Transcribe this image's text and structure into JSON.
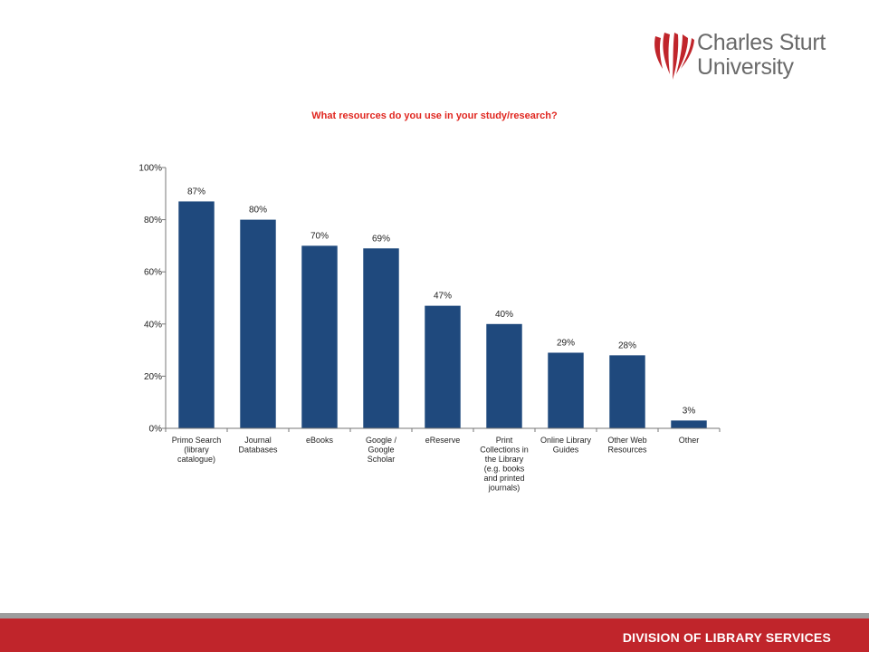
{
  "logo": {
    "line1": "Charles Sturt",
    "line2": "University"
  },
  "footer": {
    "text": "DIVISION OF LIBRARY SERVICES"
  },
  "colors": {
    "bar": "#1f497d",
    "title": "#e0261f",
    "footer_bar": "#c0252b",
    "logo_red": "#c0252b"
  },
  "chart_data": {
    "type": "bar",
    "title": "What resources do you use in your study/research?",
    "categories": [
      "Primo Search (library catalogue)",
      "Journal Databases",
      "eBooks",
      "Google / Google Scholar",
      "eReserve",
      "Print Collections in the Library (e.g. books and printed journals)",
      "Online Library Guides",
      "Other Web Resources",
      "Other"
    ],
    "category_lines": [
      [
        "Primo Search",
        "(library",
        "catalogue)"
      ],
      [
        "Journal",
        "Databases"
      ],
      [
        "eBooks"
      ],
      [
        "Google /",
        "Google",
        "Scholar"
      ],
      [
        "eReserve"
      ],
      [
        "Print",
        "Collections in",
        "the Library",
        "(e.g. books",
        "and printed",
        "journals)"
      ],
      [
        "Online Library",
        "Guides"
      ],
      [
        "Other Web",
        "Resources"
      ],
      [
        "Other"
      ]
    ],
    "values": [
      87,
      80,
      70,
      69,
      47,
      40,
      29,
      28,
      3
    ],
    "data_labels": [
      "87%",
      "80%",
      "70%",
      "69%",
      "47%",
      "40%",
      "29%",
      "28%",
      "3%"
    ],
    "yticks": [
      0,
      20,
      40,
      60,
      80,
      100
    ],
    "ytick_labels": [
      "0%",
      "20%",
      "40%",
      "60%",
      "80%",
      "100%"
    ],
    "ylim": [
      0,
      100
    ],
    "xlabel": "",
    "ylabel": "",
    "grid": false,
    "legend": "none"
  }
}
